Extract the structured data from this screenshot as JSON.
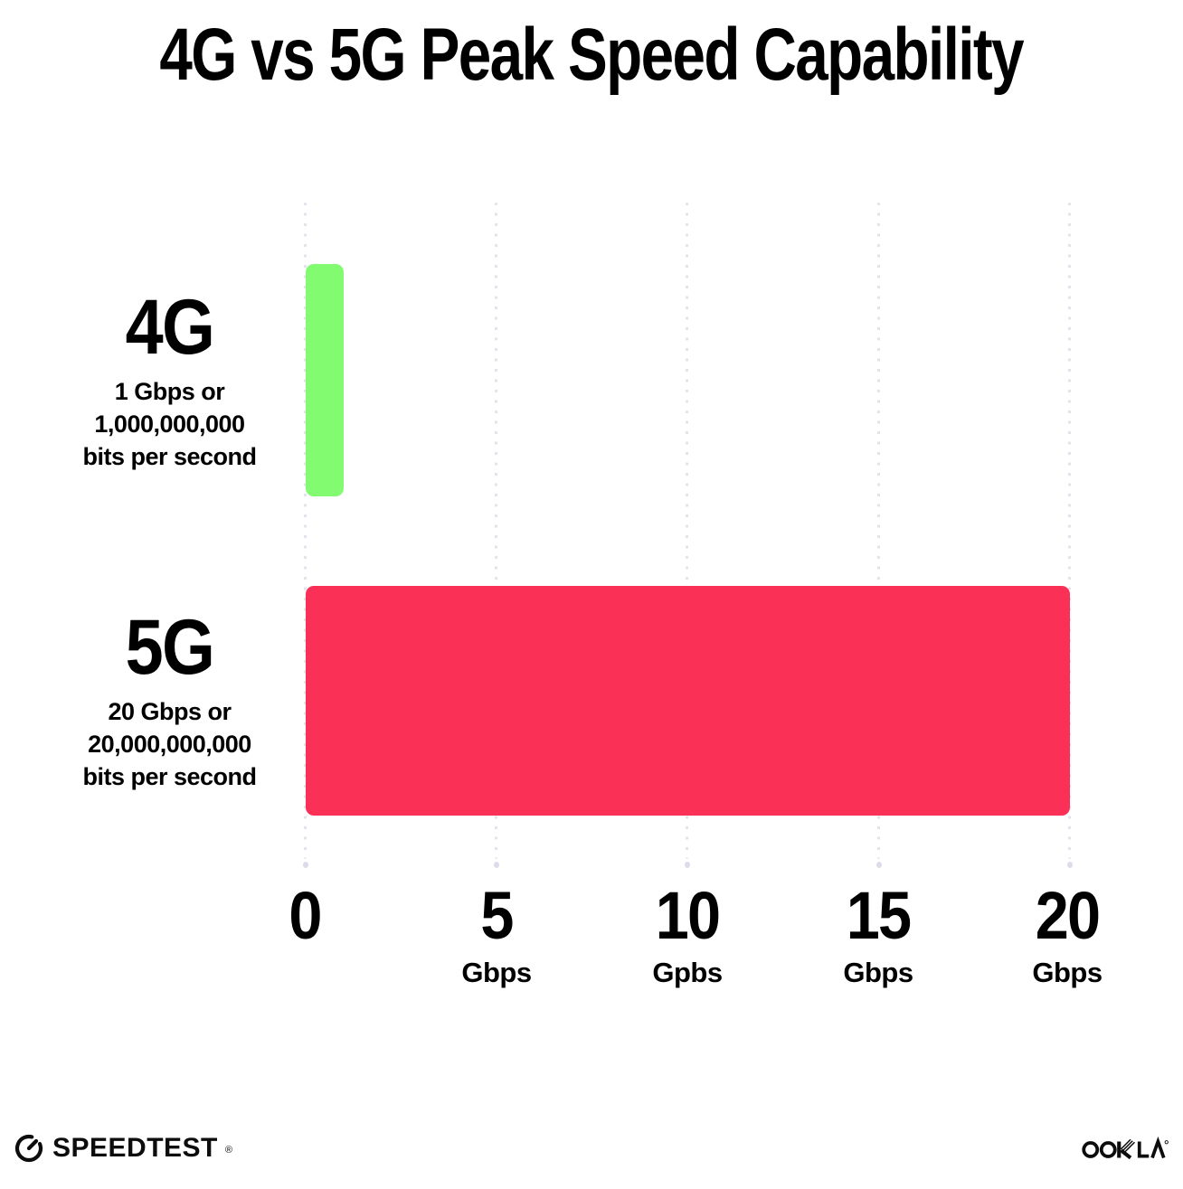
{
  "title": "4G vs 5G Peak Speed Capability",
  "chart_data": {
    "type": "bar",
    "orientation": "horizontal",
    "title": "4G vs 5G Peak Speed Capability",
    "categories": [
      "4G",
      "5G"
    ],
    "values": [
      1,
      20
    ],
    "value_unit": "Gbps",
    "value_descriptions": [
      "1 Gbps or 1,000,000,000 bits per second",
      "20 Gbps or 20,000,000,000 bits per second"
    ],
    "xlim": [
      0,
      20
    ],
    "x_tick_values": [
      0,
      5,
      10,
      15,
      20
    ],
    "bar_colors": [
      "#83FB70",
      "#FA3056"
    ],
    "grid": "vertical dotted lines",
    "legend": "none"
  },
  "rows": [
    {
      "name": "4G",
      "desc_line1": "1 Gbps or",
      "desc_line2": "1,000,000,000",
      "desc_line3": "bits per second"
    },
    {
      "name": "5G",
      "desc_line1": "20 Gbps or",
      "desc_line2": "20,000,000,000",
      "desc_line3": "bits per second"
    }
  ],
  "axis": {
    "ticks": [
      {
        "label": "0",
        "unit": ""
      },
      {
        "label": "5",
        "unit": "Gbps"
      },
      {
        "label": "10",
        "unit": "Gpbs"
      },
      {
        "label": "15",
        "unit": "Gbps"
      },
      {
        "label": "20",
        "unit": "Gbps"
      }
    ]
  },
  "footer": {
    "speedtest_label": "SPEEDTEST",
    "speedtest_mark": "®",
    "ookla_label": "OOKLA",
    "ookla_mark": "®"
  },
  "colors": {
    "bar_4g": "#83FB70",
    "bar_5g": "#FA3056",
    "gridline": "#E3E3EE",
    "text": "#000000",
    "logo": "#0D0D0D"
  }
}
